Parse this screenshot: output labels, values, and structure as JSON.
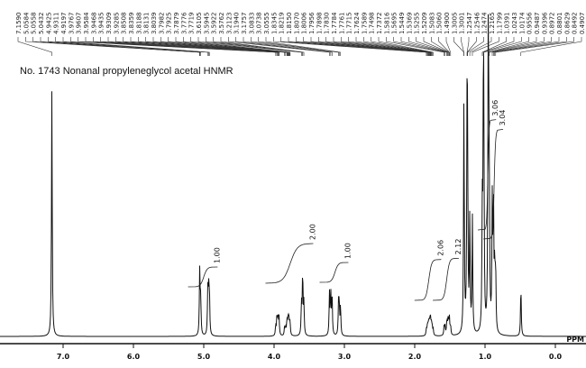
{
  "chart_data": {
    "type": "line",
    "title": "No. 1743 Nonanal propyleneglycol acetal HNMR",
    "xlabel": "PPM",
    "x_reversed": true,
    "xlim": [
      7.9,
      -0.44
    ],
    "x_ticks": [
      "8.0",
      "7.0",
      "6.0",
      "5.0",
      "4.0",
      "3.0",
      "2.0",
      "1.0",
      "0.0"
    ],
    "x_tick_values": [
      8,
      7,
      6,
      5,
      4,
      3,
      2,
      1,
      0
    ],
    "grid": false,
    "peak_labels": [
      "7.1590",
      "5.0584",
      "5.0558",
      "5.0432",
      "4.9425",
      "4.9311",
      "4.9197",
      "3.9767",
      "3.9607",
      "3.9584",
      "3.9468",
      "3.9435",
      "3.9309",
      "3.9285",
      "3.8508",
      "3.8359",
      "3.8188",
      "3.8131",
      "3.8039",
      "3.7982",
      "3.7925",
      "3.7879",
      "3.7776",
      "3.7719",
      "3.6105",
      "3.5945",
      "3.5922",
      "3.5762",
      "3.2123",
      "3.1940",
      "3.1757",
      "3.0833",
      "3.0738",
      "3.0555",
      "1.8345",
      "1.8219",
      "1.8150",
      "1.8070",
      "1.8006",
      "1.7956",
      "1.7898",
      "1.7830",
      "1.7784",
      "1.7761",
      "1.7715",
      "1.7624",
      "1.7589",
      "1.7498",
      "1.7372",
      "1.5816",
      "1.5695",
      "1.5449",
      "1.5369",
      "1.5255",
      "1.5209",
      "1.5083",
      "1.5060",
      "1.4900",
      "1.3005",
      "1.3001",
      "1.2547",
      "1.2546",
      "1.2474",
      "1.2165",
      "1.1799",
      "1.0391",
      "1.0243",
      "1.0174",
      "0.9556",
      "0.9487",
      "0.9396",
      "0.8972",
      "0.8801",
      "0.8629",
      "0.8492",
      "0.4907"
    ],
    "peaks": [
      {
        "shift": 7.16,
        "intensity": 73
      },
      {
        "shift": 5.05,
        "intensity": 14
      },
      {
        "shift": 4.93,
        "intensity": 17
      },
      {
        "shift": 3.95,
        "intensity": 9
      },
      {
        "shift": 3.8,
        "intensity": 11
      },
      {
        "shift": 3.59,
        "intensity": 17
      },
      {
        "shift": 3.19,
        "intensity": 17
      },
      {
        "shift": 3.07,
        "intensity": 12
      },
      {
        "shift": 1.79,
        "intensity": 12
      },
      {
        "shift": 1.54,
        "intensity": 11
      },
      {
        "shift": 1.25,
        "intensity": 110
      },
      {
        "shift": 1.03,
        "intensity": 62
      },
      {
        "shift": 0.95,
        "intensity": 61
      },
      {
        "shift": 0.88,
        "intensity": 59
      },
      {
        "shift": 0.49,
        "intensity": 15
      }
    ],
    "integrals": [
      {
        "label": "1.00",
        "from": 5.12,
        "to": 4.88
      },
      {
        "label": "2.00",
        "from": 4.02,
        "to": 3.52
      },
      {
        "label": "1.00",
        "from": 3.25,
        "to": 3.02
      },
      {
        "label": "2.06",
        "from": 1.9,
        "to": 1.7
      },
      {
        "label": "2.12",
        "from": 1.64,
        "to": 1.45
      },
      {
        "label": "3.06",
        "from": 1.0,
        "to": 0.92
      },
      {
        "label": "3.04",
        "from": 0.92,
        "to": 0.82
      }
    ]
  }
}
